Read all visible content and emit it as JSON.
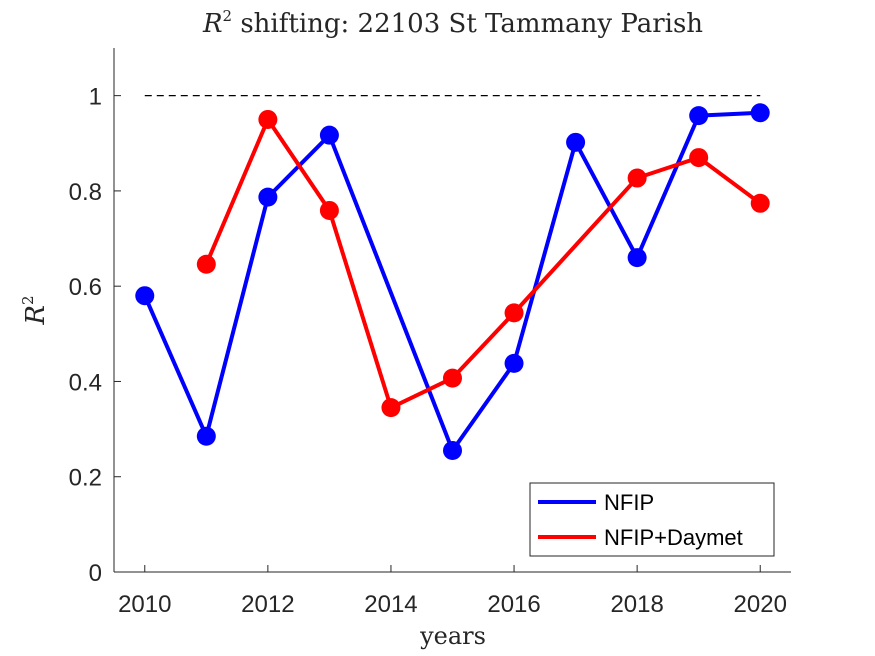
{
  "chart_data": {
    "type": "line",
    "title_prefix": "R",
    "title_sup": "2",
    "title_rest": " shifting: 22103 St Tammany Parish",
    "xlabel": "years",
    "ylabel_main": "R",
    "ylabel_sup": "2",
    "xlim": [
      2009.5,
      2020.5
    ],
    "ylim": [
      0,
      1.1
    ],
    "xticks": [
      2010,
      2012,
      2014,
      2016,
      2018,
      2020
    ],
    "yticks": [
      0,
      0.2,
      0.4,
      0.6,
      0.8,
      1
    ],
    "ytick_labels": [
      "0",
      "0.2",
      "0.4",
      "0.6",
      "0.8",
      "1"
    ],
    "reference_line": 1,
    "legend_position": "bottom-right",
    "series": [
      {
        "name": "NFIP",
        "color": "#0000ff",
        "x": [
          2010,
          2011,
          2012,
          2013,
          2015,
          2016,
          2017,
          2018,
          2019,
          2020
        ],
        "values": [
          0.58,
          0.285,
          0.787,
          0.917,
          0.255,
          0.438,
          0.902,
          0.66,
          0.958,
          0.964
        ]
      },
      {
        "name": "NFIP+Daymet",
        "color": "#ff0000",
        "x": [
          2011,
          2012,
          2013,
          2014,
          2015,
          2016,
          2018,
          2019,
          2020
        ],
        "values": [
          0.646,
          0.95,
          0.759,
          0.345,
          0.407,
          0.544,
          0.827,
          0.87,
          0.774
        ]
      }
    ]
  }
}
